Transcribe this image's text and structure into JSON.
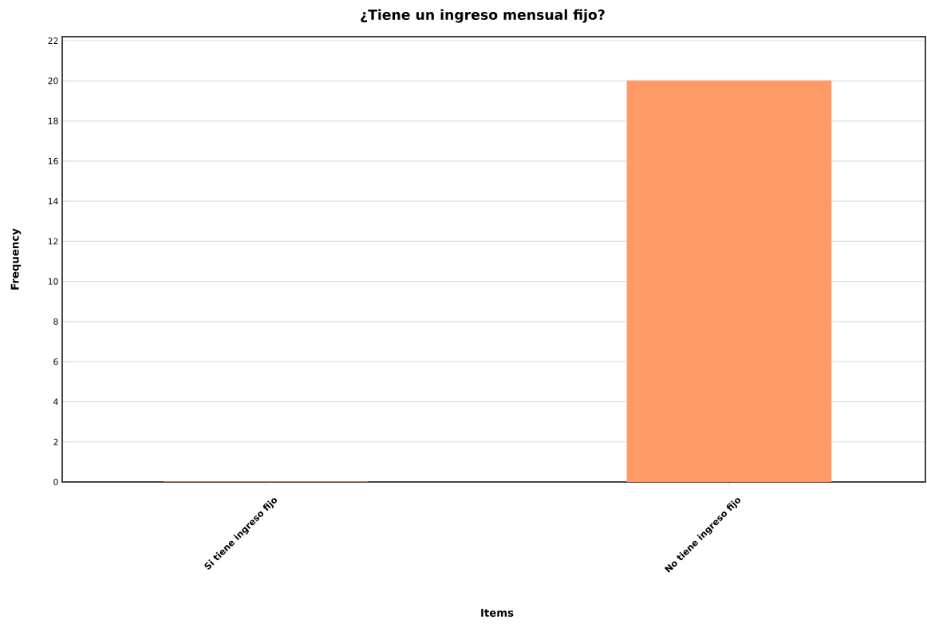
{
  "chart_data": {
    "type": "bar",
    "title": "¿Tiene un ingreso mensual fijo?",
    "xlabel": "Items",
    "ylabel": "Frequency",
    "categories": [
      "Si tiene ingreso fijo",
      "No tiene ingreso fijo"
    ],
    "values": [
      0,
      20
    ],
    "color": "#ff9966",
    "ylim": [
      0,
      22.2
    ],
    "yticks": [
      0,
      2,
      4,
      6,
      8,
      10,
      12,
      14,
      16,
      18,
      20,
      22
    ],
    "grid": "y"
  }
}
